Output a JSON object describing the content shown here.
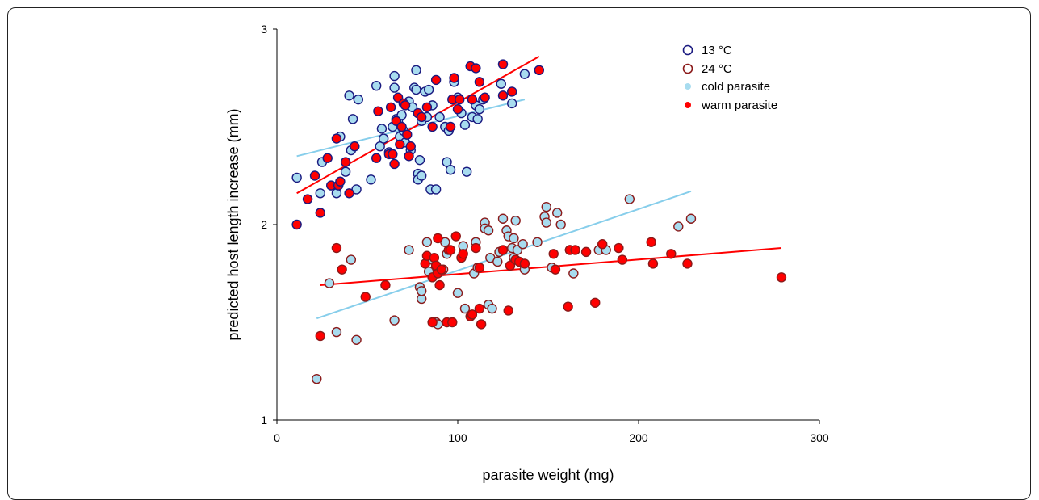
{
  "chart_data": {
    "type": "scatter",
    "xlabel": "parasite weight (mg)",
    "ylabel": "predicted host length increase (mm)",
    "xlim": [
      0,
      300
    ],
    "ylim": [
      1,
      3
    ],
    "x_ticks": [
      "0",
      "100",
      "200",
      "300"
    ],
    "y_ticks": [
      "1",
      "2",
      "3"
    ],
    "grid": false,
    "legend_position": "top-right",
    "legend": [
      {
        "label": "13 °C",
        "kind": "hollow-circle",
        "color": "#1a1a80"
      },
      {
        "label": "24 °C",
        "kind": "hollow-circle",
        "color": "#8b1a1a"
      },
      {
        "label": "cold parasite",
        "kind": "filled-dot",
        "color": "#a8dcef"
      },
      {
        "label": "warm parasite",
        "kind": "filled-dot",
        "color": "#ff0000"
      }
    ],
    "colors": {
      "cold_fill": "#a8dcef",
      "warm_fill": "#ff0000",
      "edge_13": "#1a1a80",
      "edge_24": "#8b1a1a",
      "line_cold": "#87ceeb",
      "line_warm": "#ff0000"
    },
    "series": [
      {
        "temperature": "13 °C",
        "parasite": "cold",
        "points": [
          [
            11,
            2.24
          ],
          [
            24,
            2.16
          ],
          [
            25,
            2.32
          ],
          [
            33,
            2.16
          ],
          [
            35,
            2.45
          ],
          [
            38,
            2.27
          ],
          [
            40,
            2.66
          ],
          [
            41,
            2.38
          ],
          [
            42,
            2.54
          ],
          [
            44,
            2.18
          ],
          [
            45,
            2.64
          ],
          [
            52,
            2.23
          ],
          [
            55,
            2.71
          ],
          [
            57,
            2.4
          ],
          [
            58,
            2.49
          ],
          [
            59,
            2.44
          ],
          [
            62,
            2.37
          ],
          [
            64,
            2.5
          ],
          [
            65,
            2.7
          ],
          [
            65,
            2.76
          ],
          [
            66,
            2.54
          ],
          [
            67,
            2.53
          ],
          [
            68,
            2.45
          ],
          [
            69,
            2.56
          ],
          [
            70,
            2.48
          ],
          [
            71,
            2.42
          ],
          [
            73,
            2.63
          ],
          [
            74,
            2.38
          ],
          [
            75,
            2.6
          ],
          [
            76,
            2.7
          ],
          [
            77,
            2.69
          ],
          [
            77,
            2.79
          ],
          [
            78,
            2.26
          ],
          [
            78,
            2.23
          ],
          [
            79,
            2.33
          ],
          [
            80,
            2.53
          ],
          [
            80,
            2.25
          ],
          [
            82,
            2.68
          ],
          [
            83,
            2.55
          ],
          [
            84,
            2.69
          ],
          [
            85,
            2.18
          ],
          [
            86,
            2.61
          ],
          [
            88,
            2.18
          ],
          [
            90,
            2.55
          ],
          [
            93,
            2.5
          ],
          [
            94,
            2.32
          ],
          [
            95,
            2.48
          ],
          [
            96,
            2.28
          ],
          [
            98,
            2.73
          ],
          [
            100,
            2.65
          ],
          [
            102,
            2.57
          ],
          [
            104,
            2.51
          ],
          [
            105,
            2.27
          ],
          [
            108,
            2.55
          ],
          [
            110,
            2.61
          ],
          [
            111,
            2.54
          ],
          [
            112,
            2.59
          ],
          [
            114,
            2.64
          ],
          [
            124,
            2.72
          ],
          [
            130,
            2.62
          ],
          [
            137,
            2.77
          ]
        ]
      },
      {
        "temperature": "13 °C",
        "parasite": "warm",
        "points": [
          [
            11,
            2.0
          ],
          [
            17,
            2.13
          ],
          [
            21,
            2.25
          ],
          [
            24,
            2.06
          ],
          [
            28,
            2.34
          ],
          [
            30,
            2.2
          ],
          [
            33,
            2.44
          ],
          [
            34,
            2.2
          ],
          [
            35,
            2.22
          ],
          [
            38,
            2.32
          ],
          [
            40,
            2.16
          ],
          [
            43,
            2.4
          ],
          [
            55,
            2.34
          ],
          [
            56,
            2.58
          ],
          [
            62,
            2.36
          ],
          [
            63,
            2.6
          ],
          [
            64,
            2.36
          ],
          [
            65,
            2.31
          ],
          [
            66,
            2.53
          ],
          [
            67,
            2.65
          ],
          [
            68,
            2.41
          ],
          [
            69,
            2.5
          ],
          [
            70,
            2.62
          ],
          [
            71,
            2.61
          ],
          [
            72,
            2.46
          ],
          [
            73,
            2.35
          ],
          [
            74,
            2.4
          ],
          [
            78,
            2.57
          ],
          [
            80,
            2.55
          ],
          [
            83,
            2.6
          ],
          [
            86,
            2.5
          ],
          [
            88,
            2.74
          ],
          [
            96,
            2.5
          ],
          [
            97,
            2.64
          ],
          [
            98,
            2.75
          ],
          [
            100,
            2.59
          ],
          [
            101,
            2.64
          ],
          [
            107,
            2.81
          ],
          [
            108,
            2.64
          ],
          [
            110,
            2.8
          ],
          [
            112,
            2.73
          ],
          [
            115,
            2.65
          ],
          [
            125,
            2.82
          ],
          [
            125,
            2.66
          ],
          [
            130,
            2.68
          ],
          [
            145,
            2.79
          ]
        ]
      },
      {
        "temperature": "24 °C",
        "parasite": "cold",
        "points": [
          [
            22,
            1.21
          ],
          [
            29,
            1.7
          ],
          [
            33,
            1.45
          ],
          [
            41,
            1.82
          ],
          [
            44,
            1.41
          ],
          [
            65,
            1.51
          ],
          [
            73,
            1.87
          ],
          [
            79,
            1.68
          ],
          [
            80,
            1.62
          ],
          [
            80,
            1.66
          ],
          [
            83,
            1.91
          ],
          [
            84,
            1.76
          ],
          [
            86,
            1.82
          ],
          [
            88,
            1.5
          ],
          [
            89,
            1.49
          ],
          [
            92,
            1.77
          ],
          [
            93,
            1.91
          ],
          [
            94,
            1.85
          ],
          [
            100,
            1.65
          ],
          [
            103,
            1.89
          ],
          [
            104,
            1.57
          ],
          [
            109,
            1.75
          ],
          [
            110,
            1.91
          ],
          [
            111,
            1.78
          ],
          [
            115,
            2.01
          ],
          [
            115,
            1.98
          ],
          [
            117,
            1.59
          ],
          [
            117,
            1.97
          ],
          [
            118,
            1.83
          ],
          [
            119,
            1.57
          ],
          [
            122,
            1.81
          ],
          [
            123,
            1.86
          ],
          [
            125,
            2.03
          ],
          [
            127,
            1.97
          ],
          [
            128,
            1.94
          ],
          [
            130,
            1.88
          ],
          [
            131,
            1.93
          ],
          [
            131,
            1.83
          ],
          [
            132,
            2.02
          ],
          [
            133,
            1.87
          ],
          [
            136,
            1.9
          ],
          [
            137,
            1.77
          ],
          [
            144,
            1.91
          ],
          [
            148,
            2.04
          ],
          [
            149,
            2.01
          ],
          [
            149,
            2.09
          ],
          [
            152,
            1.78
          ],
          [
            155,
            2.06
          ],
          [
            157,
            2.0
          ],
          [
            162,
            1.87
          ],
          [
            164,
            1.75
          ],
          [
            178,
            1.87
          ],
          [
            182,
            1.87
          ],
          [
            195,
            2.13
          ],
          [
            222,
            1.99
          ],
          [
            229,
            2.03
          ]
        ]
      },
      {
        "temperature": "24 °C",
        "parasite": "warm",
        "points": [
          [
            24,
            1.43
          ],
          [
            33,
            1.88
          ],
          [
            36,
            1.77
          ],
          [
            49,
            1.63
          ],
          [
            60,
            1.69
          ],
          [
            82,
            1.8
          ],
          [
            83,
            1.84
          ],
          [
            86,
            1.73
          ],
          [
            86,
            1.5
          ],
          [
            87,
            1.83
          ],
          [
            88,
            1.79
          ],
          [
            89,
            1.93
          ],
          [
            89,
            1.75
          ],
          [
            90,
            1.69
          ],
          [
            91,
            1.77
          ],
          [
            94,
            1.5
          ],
          [
            95,
            1.87
          ],
          [
            96,
            1.87
          ],
          [
            97,
            1.5
          ],
          [
            99,
            1.94
          ],
          [
            102,
            1.83
          ],
          [
            103,
            1.85
          ],
          [
            107,
            1.53
          ],
          [
            108,
            1.54
          ],
          [
            110,
            1.88
          ],
          [
            112,
            1.57
          ],
          [
            112,
            1.78
          ],
          [
            113,
            1.49
          ],
          [
            125,
            1.87
          ],
          [
            128,
            1.56
          ],
          [
            129,
            1.79
          ],
          [
            132,
            1.82
          ],
          [
            134,
            1.81
          ],
          [
            137,
            1.8
          ],
          [
            153,
            1.85
          ],
          [
            154,
            1.77
          ],
          [
            161,
            1.58
          ],
          [
            162,
            1.87
          ],
          [
            165,
            1.87
          ],
          [
            171,
            1.86
          ],
          [
            176,
            1.6
          ],
          [
            180,
            1.9
          ],
          [
            189,
            1.88
          ],
          [
            191,
            1.82
          ],
          [
            207,
            1.91
          ],
          [
            208,
            1.8
          ],
          [
            218,
            1.85
          ],
          [
            227,
            1.8
          ],
          [
            279,
            1.73
          ]
        ]
      }
    ],
    "trend_lines": [
      {
        "temperature": "13 °C",
        "parasite": "cold",
        "x": [
          11,
          137
        ],
        "y": [
          2.35,
          2.64
        ]
      },
      {
        "temperature": "13 °C",
        "parasite": "warm",
        "x": [
          11,
          145
        ],
        "y": [
          2.16,
          2.86
        ]
      },
      {
        "temperature": "24 °C",
        "parasite": "cold",
        "x": [
          22,
          229
        ],
        "y": [
          1.52,
          2.17
        ]
      },
      {
        "temperature": "24 °C",
        "parasite": "warm",
        "x": [
          24,
          279
        ],
        "y": [
          1.69,
          1.88
        ]
      }
    ]
  }
}
